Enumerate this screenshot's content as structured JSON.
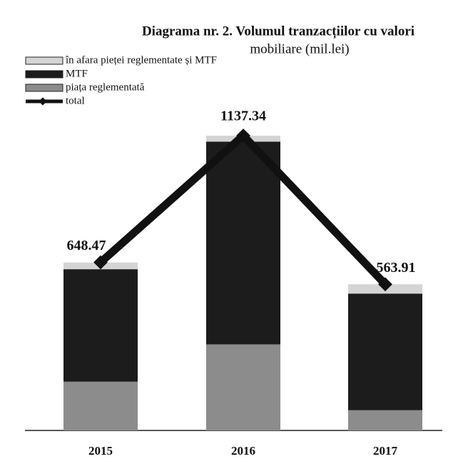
{
  "chart_data": {
    "type": "stacked-bar-line",
    "title": [
      "Diagrama nr. 2. Volumul tranzacțiilor cu valori",
      "mobiliare (mil.lei)"
    ],
    "categories": [
      "2015",
      "2016",
      "2017"
    ],
    "series": [
      {
        "name": "piața reglementată",
        "color": "#8c8c8c",
        "values": [
          188,
          332,
          78
        ]
      },
      {
        "name": "MTF",
        "color": "#1c1c1c",
        "values": [
          434,
          782,
          450
        ]
      },
      {
        "name": "în afara pieței reglementate și MTF",
        "color": "#d4d4d4",
        "values": [
          26,
          23,
          36
        ]
      },
      {
        "name": "total",
        "color": "#111111",
        "values": [
          648.47,
          1137.34,
          563.91
        ]
      }
    ]
  }
}
